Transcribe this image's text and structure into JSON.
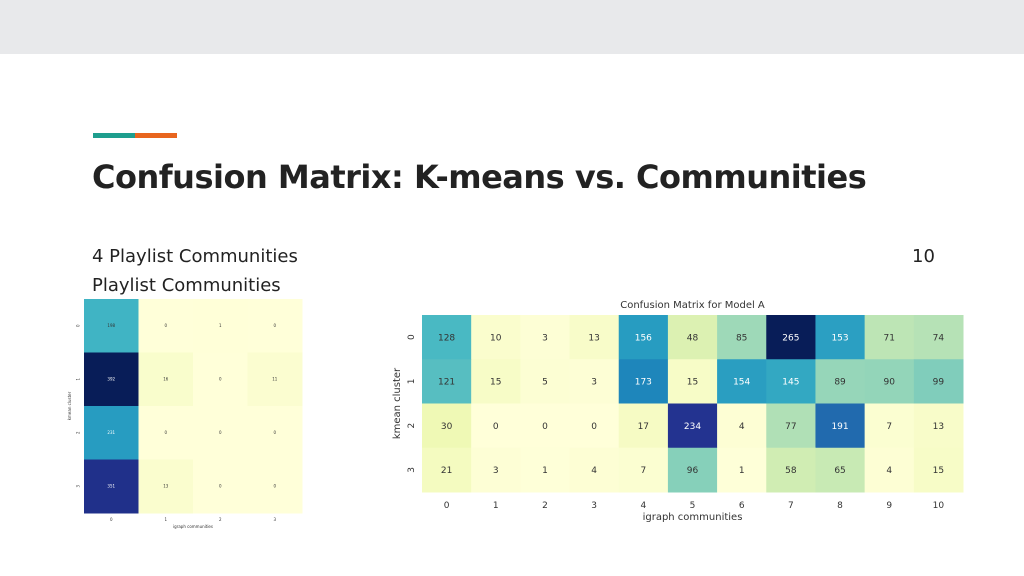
{
  "slide": {
    "title": "Confusion Matrix: K-means vs. Communities",
    "left_text_line1": "4 Playlist Communities",
    "left_text_line2": "Playlist Communities",
    "right_text": "10",
    "accent_colors": [
      "#1e9e8e",
      "#e8651e"
    ]
  },
  "chart_data": [
    {
      "type": "heatmap",
      "title": "",
      "xlabel": "igraph communities",
      "ylabel": "kmean cluster",
      "x_categories": [
        "0",
        "1",
        "2",
        "3"
      ],
      "y_categories": [
        "0",
        "1",
        "2",
        "3"
      ],
      "values": [
        [
          198,
          0,
          1,
          0
        ],
        [
          392,
          16,
          0,
          11
        ],
        [
          231,
          0,
          0,
          0
        ],
        [
          351,
          13,
          0,
          0
        ]
      ],
      "colorscale": "YlGnBu"
    },
    {
      "type": "heatmap",
      "title": "Confusion Matrix for Model A",
      "xlabel": "igraph communities",
      "ylabel": "kmean cluster",
      "x_categories": [
        "0",
        "1",
        "2",
        "3",
        "4",
        "5",
        "6",
        "7",
        "8",
        "9",
        "10"
      ],
      "y_categories": [
        "0",
        "1",
        "2",
        "3"
      ],
      "values": [
        [
          128,
          10,
          3,
          13,
          156,
          48,
          85,
          265,
          153,
          71,
          74
        ],
        [
          121,
          15,
          5,
          3,
          173,
          15,
          154,
          145,
          89,
          90,
          99
        ],
        [
          30,
          0,
          0,
          0,
          17,
          234,
          4,
          77,
          191,
          7,
          13
        ],
        [
          21,
          3,
          1,
          4,
          7,
          96,
          1,
          58,
          65,
          4,
          15
        ]
      ],
      "colorscale": "YlGnBu"
    }
  ]
}
